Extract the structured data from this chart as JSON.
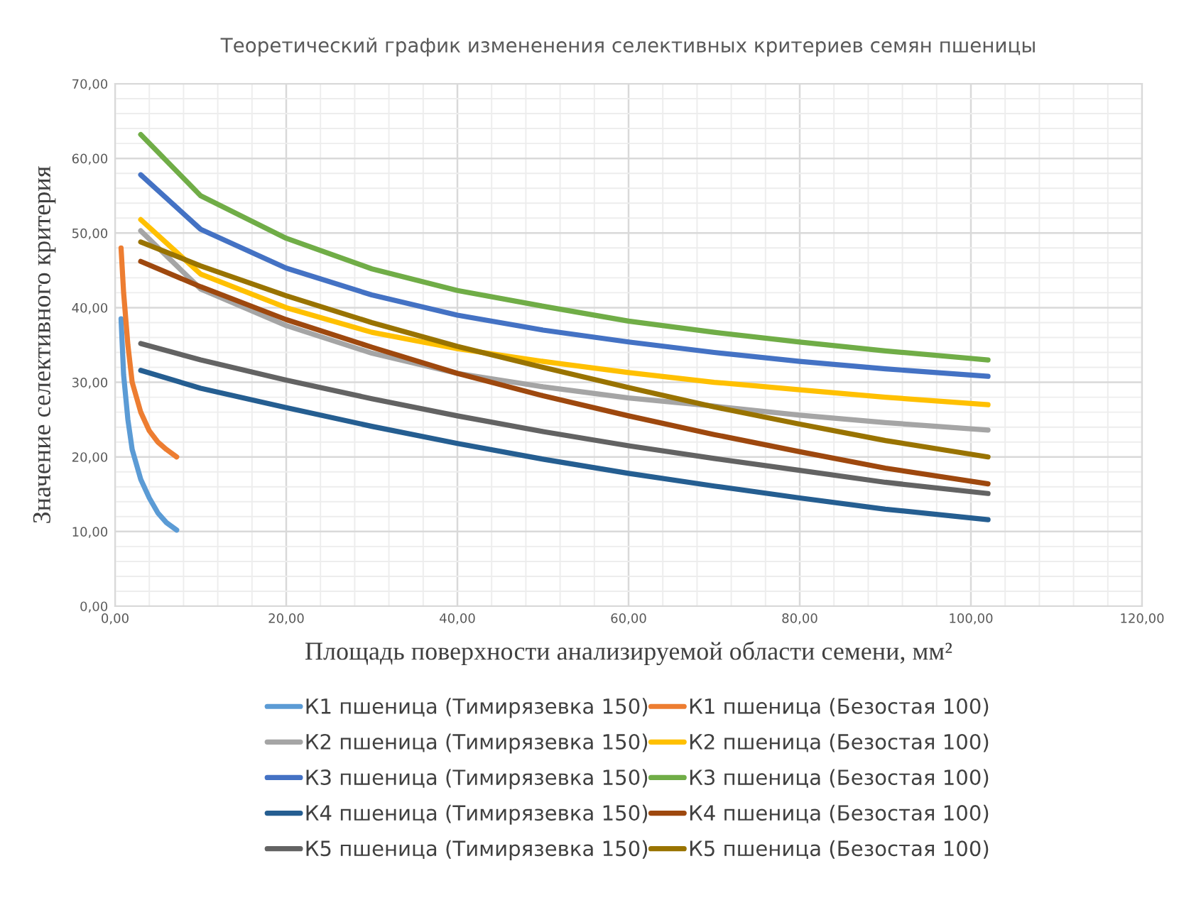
{
  "chart_data": {
    "type": "line",
    "title": "Теоретический график измененения селективных критериев семян пшеницы",
    "xlabel": "Площадь поверхности анализируемой области семени, мм²",
    "ylabel": "Значение селективного критерия",
    "xlim": [
      0,
      120
    ],
    "xticks": [
      {
        "value": 0,
        "label": "0,00"
      },
      {
        "value": 20,
        "label": "20,00"
      },
      {
        "value": 40,
        "label": "40,00"
      },
      {
        "value": 60,
        "label": "60,00"
      },
      {
        "value": 80,
        "label": "80,00"
      },
      {
        "value": 100,
        "label": "100,00"
      },
      {
        "value": 120,
        "label": "120,00"
      }
    ],
    "ylim": [
      0,
      70
    ],
    "yticks": [
      {
        "value": 0,
        "label": "0,00"
      },
      {
        "value": 10,
        "label": "10,00"
      },
      {
        "value": 20,
        "label": "20,00"
      },
      {
        "value": 30,
        "label": "30,00"
      },
      {
        "value": 40,
        "label": "40,00"
      },
      {
        "value": 50,
        "label": "50,00"
      },
      {
        "value": 60,
        "label": "60,00"
      },
      {
        "value": 70,
        "label": "70,00"
      }
    ],
    "grid": true,
    "legend": "bottom",
    "marker": "none",
    "line_style": "solid",
    "series": [
      {
        "name": "К1 пшеница (Тимирязевка 150)",
        "color": "#5b9bd5",
        "x": [
          0.7,
          1,
          1.5,
          2,
          3,
          4,
          5,
          6,
          7.2
        ],
        "values": [
          38.5,
          31,
          25,
          21,
          17,
          14.5,
          12.5,
          11.2,
          10.2
        ]
      },
      {
        "name": "К1 пшеница (Безостая 100)",
        "color": "#ed7d31",
        "x": [
          0.7,
          1,
          1.5,
          2,
          3,
          4,
          5,
          6,
          7.2
        ],
        "values": [
          48,
          42,
          35,
          30,
          26,
          23.5,
          22,
          21,
          20
        ]
      },
      {
        "name": "К2 пшеница (Тимирязевка 150)",
        "color": "#a5a5a5",
        "x": [
          3,
          10,
          20,
          30,
          40,
          50,
          60,
          70,
          80,
          90,
          102
        ],
        "values": [
          50.3,
          42.5,
          37.6,
          33.9,
          31.2,
          29.4,
          27.9,
          26.8,
          25.6,
          24.6,
          23.6
        ]
      },
      {
        "name": "К2 пшеница (Безостая 100)",
        "color": "#ffc000",
        "x": [
          3,
          10,
          20,
          30,
          40,
          50,
          60,
          70,
          80,
          90,
          102
        ],
        "values": [
          51.8,
          44.5,
          40,
          36.7,
          34.5,
          32.8,
          31.3,
          30,
          29,
          28,
          27
        ]
      },
      {
        "name": "К3 пшеница (Тимирязевка 150)",
        "color": "#4472c4",
        "x": [
          3,
          10,
          20,
          30,
          40,
          50,
          60,
          70,
          80,
          90,
          102
        ],
        "values": [
          57.8,
          50.5,
          45.3,
          41.7,
          39,
          37,
          35.4,
          34,
          32.8,
          31.8,
          30.8
        ]
      },
      {
        "name": "К3 пшеница (Безостая 100)",
        "color": "#70ad47",
        "x": [
          3,
          10,
          20,
          30,
          40,
          50,
          60,
          70,
          80,
          90,
          102
        ],
        "values": [
          63.2,
          55,
          49.3,
          45.2,
          42.3,
          40.2,
          38.2,
          36.7,
          35.4,
          34.2,
          33
        ]
      },
      {
        "name": "К4 пшеница (Тимирязевка 150)",
        "color": "#255e91",
        "x": [
          3,
          10,
          20,
          30,
          40,
          50,
          60,
          70,
          80,
          90,
          102
        ],
        "values": [
          31.6,
          29.2,
          26.6,
          24.1,
          21.8,
          19.7,
          17.8,
          16.1,
          14.5,
          13,
          11.6
        ]
      },
      {
        "name": "К4 пшеница (Безостая 100)",
        "color": "#9e480e",
        "x": [
          3,
          10,
          20,
          30,
          40,
          50,
          60,
          70,
          80,
          90,
          102
        ],
        "values": [
          46.2,
          42.8,
          38.4,
          34.7,
          31.2,
          28.2,
          25.5,
          23,
          20.7,
          18.5,
          16.4
        ]
      },
      {
        "name": "К5 пшеница (Тимирязевка 150)",
        "color": "#636363",
        "x": [
          3,
          10,
          20,
          30,
          40,
          50,
          60,
          70,
          80,
          90,
          102
        ],
        "values": [
          35.2,
          33,
          30.3,
          27.8,
          25.5,
          23.4,
          21.5,
          19.8,
          18.2,
          16.6,
          15.1
        ]
      },
      {
        "name": "К5 пшеница (Безостая 100)",
        "color": "#997300",
        "x": [
          3,
          10,
          20,
          30,
          40,
          50,
          60,
          70,
          80,
          90,
          102
        ],
        "values": [
          48.8,
          45.6,
          41.6,
          38,
          34.8,
          32,
          29.3,
          26.7,
          24.4,
          22.2,
          20
        ]
      }
    ]
  }
}
